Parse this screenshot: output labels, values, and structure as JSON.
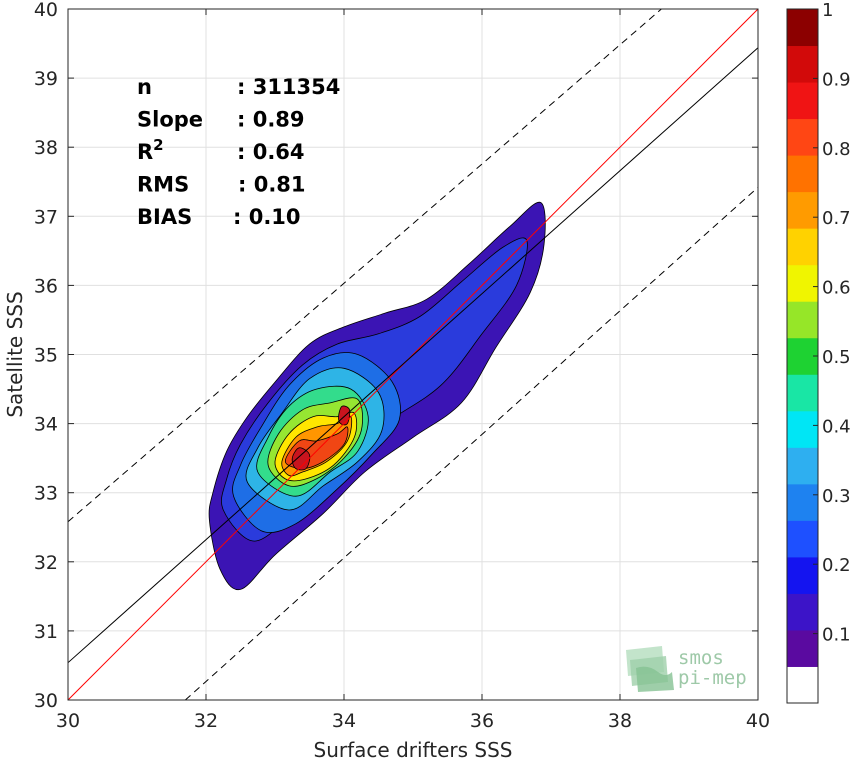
{
  "chart_data": {
    "type": "heatmap",
    "subtype": "density-contour-scatter",
    "xlabel": "Surface drifters SSS",
    "ylabel": "Satellite SSS",
    "xlim": [
      30,
      40
    ],
    "ylim": [
      30,
      40
    ],
    "xticks": [
      "30",
      "32",
      "34",
      "36",
      "38",
      "40"
    ],
    "yticks": [
      "30",
      "31",
      "32",
      "33",
      "34",
      "35",
      "36",
      "37",
      "38",
      "39",
      "40"
    ],
    "grid": true,
    "statistics": [
      {
        "key": "n",
        "value": ": 311354"
      },
      {
        "key": "Slope",
        "value": ": 0.89"
      },
      {
        "key": "R",
        "sup": "2",
        "value": ": 0.64"
      },
      {
        "key": "RMS",
        "value": ": 0.81"
      },
      {
        "key": "BIAS",
        "value": ": 0.10"
      }
    ],
    "lines": [
      {
        "name": "one-to-one",
        "color": "#ff0000",
        "style": "solid",
        "x": [
          30,
          40
        ],
        "y": [
          30,
          40
        ]
      },
      {
        "name": "regression",
        "color": "#000000",
        "style": "solid",
        "x": [
          30,
          40
        ],
        "y": [
          30.54,
          39.44
        ]
      },
      {
        "name": "upper-bound",
        "color": "#000000",
        "style": "dashed",
        "x": [
          30,
          38.6
        ],
        "y": [
          32.58,
          40
        ]
      },
      {
        "name": "lower-bound",
        "color": "#000000",
        "style": "dashed",
        "x": [
          31.7,
          40
        ],
        "y": [
          30,
          37.42
        ]
      }
    ],
    "contours": [
      {
        "level": 0.05,
        "color": "#3b14b4",
        "points": [
          [
            32.05,
            32.6
          ],
          [
            32.1,
            33.0
          ],
          [
            32.3,
            33.6
          ],
          [
            32.6,
            34.1
          ],
          [
            33.0,
            34.6
          ],
          [
            33.5,
            35.15
          ],
          [
            34.0,
            35.4
          ],
          [
            34.6,
            35.6
          ],
          [
            35.2,
            35.8
          ],
          [
            35.8,
            36.3
          ],
          [
            36.4,
            36.85
          ],
          [
            36.85,
            37.2
          ],
          [
            36.9,
            36.6
          ],
          [
            36.7,
            35.9
          ],
          [
            36.2,
            35.1
          ],
          [
            35.7,
            34.3
          ],
          [
            35.0,
            33.8
          ],
          [
            34.3,
            33.3
          ],
          [
            33.7,
            32.7
          ],
          [
            33.0,
            32.1
          ],
          [
            32.5,
            31.6
          ],
          [
            32.2,
            31.9
          ]
        ]
      },
      {
        "level": 0.15,
        "color": "#2a3bdc",
        "points": [
          [
            32.25,
            32.75
          ],
          [
            32.3,
            33.2
          ],
          [
            32.5,
            33.7
          ],
          [
            32.9,
            34.3
          ],
          [
            33.4,
            34.85
          ],
          [
            33.9,
            35.15
          ],
          [
            34.5,
            35.3
          ],
          [
            35.1,
            35.55
          ],
          [
            35.7,
            36.05
          ],
          [
            36.3,
            36.55
          ],
          [
            36.65,
            36.65
          ],
          [
            36.5,
            36.0
          ],
          [
            36.0,
            35.3
          ],
          [
            35.4,
            34.55
          ],
          [
            34.6,
            34.0
          ],
          [
            33.9,
            33.4
          ],
          [
            33.3,
            32.75
          ],
          [
            32.7,
            32.3
          ]
        ]
      },
      {
        "level": 0.25,
        "color": "#1e6ee6",
        "points": [
          [
            32.4,
            32.95
          ],
          [
            32.5,
            33.4
          ],
          [
            32.8,
            33.95
          ],
          [
            33.2,
            34.55
          ],
          [
            33.7,
            34.95
          ],
          [
            34.2,
            35.0
          ],
          [
            34.7,
            34.6
          ],
          [
            34.8,
            34.05
          ],
          [
            34.4,
            33.55
          ],
          [
            33.9,
            33.05
          ],
          [
            33.3,
            32.55
          ],
          [
            32.8,
            32.45
          ]
        ]
      },
      {
        "level": 0.35,
        "color": "#2eb4e6",
        "points": [
          [
            32.6,
            33.15
          ],
          [
            32.75,
            33.65
          ],
          [
            33.1,
            34.15
          ],
          [
            33.5,
            34.65
          ],
          [
            34.0,
            34.8
          ],
          [
            34.5,
            34.45
          ],
          [
            34.55,
            33.9
          ],
          [
            34.2,
            33.45
          ],
          [
            33.7,
            33.1
          ],
          [
            33.2,
            32.75
          ]
        ]
      },
      {
        "level": 0.45,
        "color": "#33dc8c",
        "points": [
          [
            32.75,
            33.3
          ],
          [
            32.9,
            33.8
          ],
          [
            33.2,
            34.25
          ],
          [
            33.6,
            34.5
          ],
          [
            34.1,
            34.5
          ],
          [
            34.35,
            34.1
          ],
          [
            34.2,
            33.6
          ],
          [
            33.8,
            33.3
          ],
          [
            33.3,
            32.95
          ]
        ]
      },
      {
        "level": 0.55,
        "color": "#96e632",
        "points": [
          [
            32.9,
            33.4
          ],
          [
            33.05,
            33.85
          ],
          [
            33.4,
            34.2
          ],
          [
            33.8,
            34.3
          ],
          [
            34.2,
            34.35
          ],
          [
            34.25,
            33.9
          ],
          [
            34.0,
            33.5
          ],
          [
            33.6,
            33.2
          ],
          [
            33.2,
            33.1
          ]
        ]
      },
      {
        "level": 0.65,
        "color": "#ffe600",
        "points": [
          [
            33.0,
            33.45
          ],
          [
            33.2,
            33.85
          ],
          [
            33.55,
            34.1
          ],
          [
            33.9,
            34.1
          ],
          [
            34.15,
            34.15
          ],
          [
            34.15,
            33.8
          ],
          [
            33.85,
            33.4
          ],
          [
            33.45,
            33.2
          ],
          [
            33.15,
            33.2
          ]
        ]
      },
      {
        "level": 0.75,
        "color": "#ff9600",
        "points": [
          [
            33.1,
            33.45
          ],
          [
            33.3,
            33.8
          ],
          [
            33.6,
            33.95
          ],
          [
            33.9,
            34.0
          ],
          [
            34.1,
            34.1
          ],
          [
            34.05,
            33.75
          ],
          [
            33.75,
            33.45
          ],
          [
            33.4,
            33.3
          ],
          [
            33.2,
            33.25
          ]
        ]
      },
      {
        "level": 0.85,
        "color": "#f04614",
        "points": [
          [
            33.15,
            33.45
          ],
          [
            33.35,
            33.75
          ],
          [
            33.6,
            33.75
          ],
          [
            33.9,
            33.85
          ],
          [
            34.05,
            33.95
          ],
          [
            34.0,
            33.7
          ],
          [
            33.7,
            33.45
          ],
          [
            33.4,
            33.35
          ]
        ]
      },
      {
        "level": 0.95,
        "color": "#c8141e",
        "points": [
          [
            33.25,
            33.5
          ],
          [
            33.35,
            33.65
          ],
          [
            33.5,
            33.55
          ],
          [
            33.45,
            33.35
          ],
          [
            33.3,
            33.35
          ]
        ]
      },
      {
        "level": 0.95,
        "color": "#c8141e",
        "points": [
          [
            33.92,
            34.1
          ],
          [
            33.97,
            34.25
          ],
          [
            34.08,
            34.2
          ],
          [
            34.05,
            34.0
          ],
          [
            33.95,
            34.0
          ]
        ]
      }
    ],
    "colorbar": {
      "range": [
        0,
        1
      ],
      "labels": [
        "0.1",
        "0.2",
        "0.3",
        "0.4",
        "0.5",
        "0.6",
        "0.7",
        "0.8",
        "0.9",
        "1"
      ],
      "colors": [
        "#ffffff",
        "#5a0aa0",
        "#3c14c8",
        "#1414f0",
        "#1e50ff",
        "#1e82f0",
        "#2eaff0",
        "#00e6f5",
        "#19e6a5",
        "#1ed232",
        "#96e628",
        "#f0f500",
        "#ffd200",
        "#ff9b00",
        "#ff7200",
        "#ff4614",
        "#f01414",
        "#d20a0a",
        "#8c0000"
      ]
    }
  },
  "logo": {
    "line1": "smos",
    "line2": "pi-mep"
  }
}
